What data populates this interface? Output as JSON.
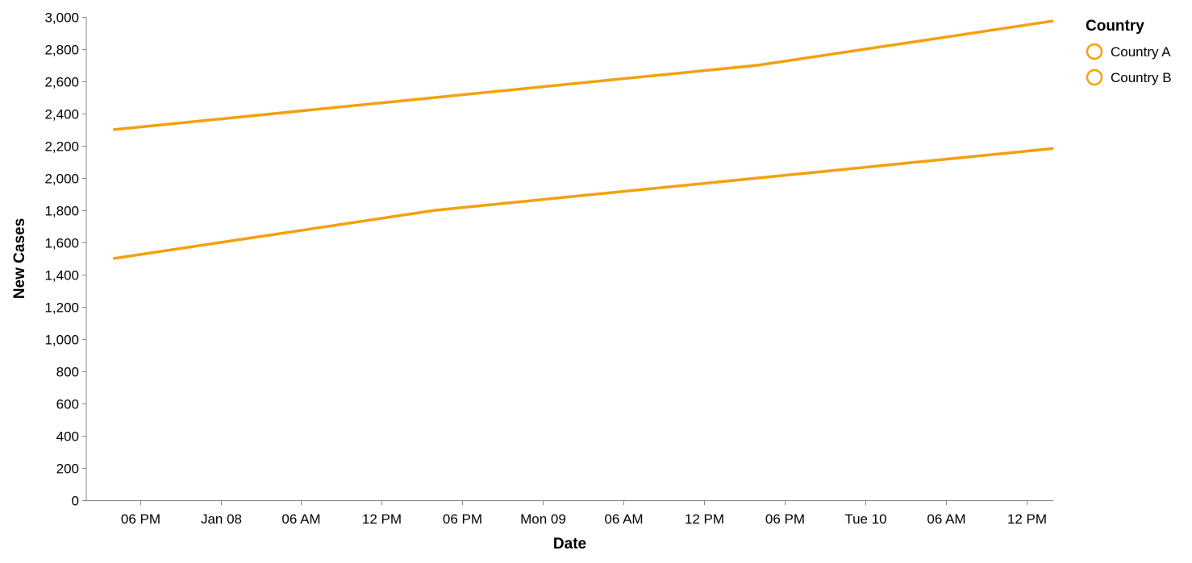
{
  "chart_data": {
    "type": "line",
    "xlabel": "Date",
    "ylabel": "New Cases",
    "ylim": [
      0,
      3000
    ],
    "xlim": [
      "2023-01-07T14:00",
      "2023-01-10T14:00"
    ],
    "y_ticks": [
      "0",
      "200",
      "400",
      "600",
      "800",
      "1,000",
      "1,200",
      "1,400",
      "1,600",
      "1,800",
      "2,000",
      "2,200",
      "2,400",
      "2,600",
      "2,800",
      "3,000"
    ],
    "x_ticks": [
      {
        "t": "2023-01-07T18:00",
        "label": "06 PM"
      },
      {
        "t": "2023-01-08T00:00",
        "label": "Jan 08"
      },
      {
        "t": "2023-01-08T06:00",
        "label": "06 AM"
      },
      {
        "t": "2023-01-08T12:00",
        "label": "12 PM"
      },
      {
        "t": "2023-01-08T18:00",
        "label": "06 PM"
      },
      {
        "t": "2023-01-09T00:00",
        "label": "Mon 09"
      },
      {
        "t": "2023-01-09T06:00",
        "label": "06 AM"
      },
      {
        "t": "2023-01-09T12:00",
        "label": "12 PM"
      },
      {
        "t": "2023-01-09T18:00",
        "label": "06 PM"
      },
      {
        "t": "2023-01-10T00:00",
        "label": "Tue 10"
      },
      {
        "t": "2023-01-10T06:00",
        "label": "06 AM"
      },
      {
        "t": "2023-01-10T12:00",
        "label": "12 PM"
      }
    ],
    "series": [
      {
        "name": "Country A",
        "color": "#f5a00f",
        "points": [
          {
            "x": "2023-01-07T16:00",
            "y": 1500
          },
          {
            "x": "2023-01-08T16:00",
            "y": 1800
          },
          {
            "x": "2023-01-09T16:00",
            "y": 2000
          },
          {
            "x": "2023-01-10T16:00",
            "y": 2200
          }
        ]
      },
      {
        "name": "Country B",
        "color": "#f5a00f",
        "points": [
          {
            "x": "2023-01-07T16:00",
            "y": 2300
          },
          {
            "x": "2023-01-08T16:00",
            "y": 2500
          },
          {
            "x": "2023-01-09T16:00",
            "y": 2700
          },
          {
            "x": "2023-01-10T16:00",
            "y": 3000
          }
        ]
      }
    ],
    "legend": {
      "title": "Country",
      "position": "top-right",
      "items": [
        "Country A",
        "Country B"
      ]
    },
    "grid": false
  }
}
